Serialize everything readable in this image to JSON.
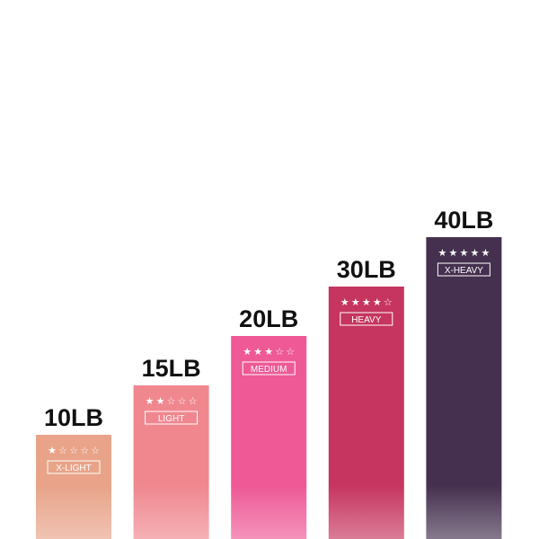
{
  "chart_data": {
    "type": "bar",
    "categories": [
      "10LB",
      "15LB",
      "20LB",
      "30LB",
      "40LB"
    ],
    "levels": [
      "X-LIGHT",
      "LIGHT",
      "MEDIUM",
      "HEAVY",
      "X-HEAVY"
    ],
    "values": [
      1,
      2,
      3,
      4,
      5
    ],
    "stars_max": 5,
    "colors": [
      "#e8a389",
      "#f0878f",
      "#ee5996",
      "#c6355f",
      "#45304f"
    ]
  }
}
